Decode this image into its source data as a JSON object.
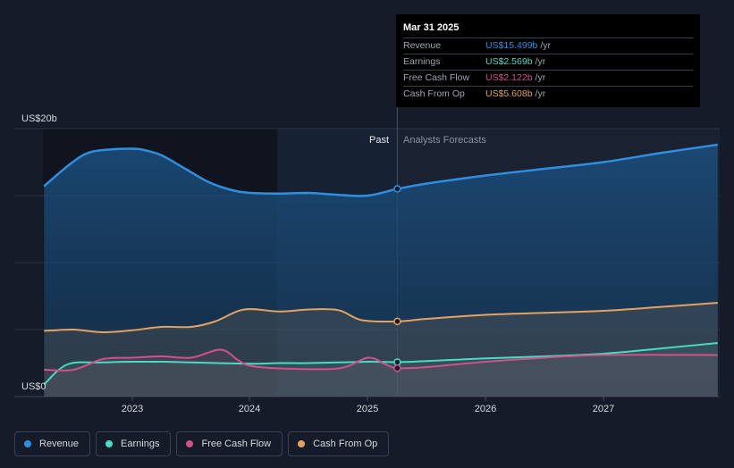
{
  "chart_data": {
    "type": "line",
    "ylim": [
      0,
      20
    ],
    "y_tick_labels": {
      "top": "US$20b",
      "bottom": "US$0"
    },
    "x_tick_labels": [
      "2023",
      "2024",
      "2025",
      "2026",
      "2027"
    ],
    "region_labels": {
      "past": "Past",
      "forecast": "Analysts Forecasts"
    },
    "grid": true,
    "series": [
      {
        "name": "Revenue",
        "color": "#2e8fe0",
        "points": [
          [
            2022.25,
            15.7
          ],
          [
            2022.45,
            17.2
          ],
          [
            2022.6,
            18.1
          ],
          [
            2022.75,
            18.4
          ],
          [
            2023.0,
            18.5
          ],
          [
            2023.1,
            18.4
          ],
          [
            2023.25,
            18.0
          ],
          [
            2023.45,
            17.0
          ],
          [
            2023.65,
            16.0
          ],
          [
            2023.85,
            15.4
          ],
          [
            2024.0,
            15.2
          ],
          [
            2024.25,
            15.15
          ],
          [
            2024.5,
            15.2
          ],
          [
            2024.75,
            15.05
          ],
          [
            2025.0,
            15.0
          ],
          [
            2025.25,
            15.5
          ],
          [
            2025.5,
            15.9
          ],
          [
            2026.0,
            16.5
          ],
          [
            2026.5,
            17.0
          ],
          [
            2027.0,
            17.5
          ],
          [
            2027.5,
            18.2
          ],
          [
            2027.97,
            18.8
          ]
        ]
      },
      {
        "name": "Earnings",
        "color": "#47dcc4",
        "points": [
          [
            2022.25,
            0.9
          ],
          [
            2022.45,
            2.4
          ],
          [
            2022.75,
            2.55
          ],
          [
            2023.0,
            2.6
          ],
          [
            2023.25,
            2.6
          ],
          [
            2023.5,
            2.55
          ],
          [
            2024.0,
            2.45
          ],
          [
            2024.25,
            2.5
          ],
          [
            2024.5,
            2.5
          ],
          [
            2025.0,
            2.6
          ],
          [
            2025.25,
            2.57
          ],
          [
            2025.5,
            2.65
          ],
          [
            2026.0,
            2.85
          ],
          [
            2026.5,
            3.0
          ],
          [
            2027.0,
            3.2
          ],
          [
            2027.5,
            3.6
          ],
          [
            2027.97,
            4.0
          ]
        ]
      },
      {
        "name": "Free Cash Flow",
        "color": "#d2508c",
        "points": [
          [
            2022.25,
            2.0
          ],
          [
            2022.5,
            2.0
          ],
          [
            2022.75,
            2.8
          ],
          [
            2023.0,
            2.9
          ],
          [
            2023.25,
            3.0
          ],
          [
            2023.5,
            2.9
          ],
          [
            2023.75,
            3.5
          ],
          [
            2023.9,
            2.7
          ],
          [
            2024.0,
            2.3
          ],
          [
            2024.25,
            2.1
          ],
          [
            2024.75,
            2.1
          ],
          [
            2025.0,
            2.9
          ],
          [
            2025.15,
            2.4
          ],
          [
            2025.25,
            2.12
          ],
          [
            2025.5,
            2.2
          ],
          [
            2026.0,
            2.6
          ],
          [
            2026.5,
            2.9
          ],
          [
            2027.0,
            3.1
          ],
          [
            2027.97,
            3.1
          ]
        ]
      },
      {
        "name": "Cash From Op",
        "color": "#e3a35f",
        "points": [
          [
            2022.25,
            4.9
          ],
          [
            2022.5,
            5.0
          ],
          [
            2022.75,
            4.8
          ],
          [
            2023.0,
            4.95
          ],
          [
            2023.25,
            5.2
          ],
          [
            2023.5,
            5.2
          ],
          [
            2023.7,
            5.6
          ],
          [
            2023.95,
            6.5
          ],
          [
            2024.25,
            6.35
          ],
          [
            2024.5,
            6.5
          ],
          [
            2024.75,
            6.45
          ],
          [
            2024.95,
            5.7
          ],
          [
            2025.25,
            5.61
          ],
          [
            2025.5,
            5.8
          ],
          [
            2026.0,
            6.1
          ],
          [
            2026.5,
            6.25
          ],
          [
            2027.0,
            6.4
          ],
          [
            2027.5,
            6.7
          ],
          [
            2027.97,
            7.0
          ]
        ]
      }
    ],
    "highlight_x": 2025.25
  },
  "tooltip": {
    "date": "Mar 31 2025",
    "rows": [
      {
        "label": "Revenue",
        "value": "US$15.499b",
        "unit": "/yr",
        "color": "#2e8fe0"
      },
      {
        "label": "Earnings",
        "value": "US$2.569b",
        "unit": "/yr",
        "color": "#47dcc4"
      },
      {
        "label": "Free Cash Flow",
        "value": "US$2.122b",
        "unit": "/yr",
        "color": "#d2508c"
      },
      {
        "label": "Cash From Op",
        "value": "US$5.608b",
        "unit": "/yr",
        "color": "#e3a35f"
      }
    ]
  },
  "legend": [
    {
      "label": "Revenue",
      "color": "#2e8fe0"
    },
    {
      "label": "Earnings",
      "color": "#47dcc4"
    },
    {
      "label": "Free Cash Flow",
      "color": "#d2508c"
    },
    {
      "label": "Cash From Op",
      "color": "#e3a35f"
    }
  ]
}
